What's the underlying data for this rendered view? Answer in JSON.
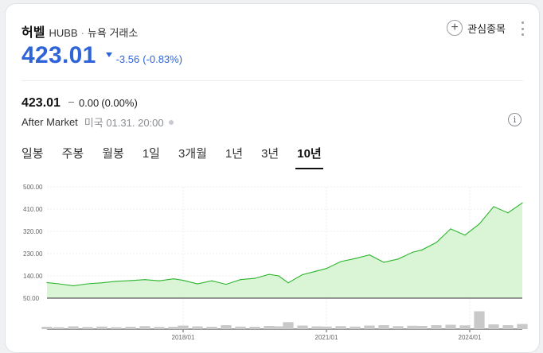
{
  "header": {
    "name": "허벨",
    "ticker": "HUBB",
    "separator": "·",
    "exchange": "뉴욕 거래소",
    "watch_label": "관심종목"
  },
  "quote": {
    "price": "423.01",
    "change": "-3.56",
    "change_pct": "(-0.83%)",
    "color_down": "#2e64d8"
  },
  "after_market": {
    "price": "423.01",
    "change": "0.00",
    "change_pct": "(0.00%)",
    "label": "After Market",
    "time": "미국 01.31. 20:00"
  },
  "tabs": [
    {
      "label": "일봉",
      "active": false
    },
    {
      "label": "주봉",
      "active": false
    },
    {
      "label": "월봉",
      "active": false
    },
    {
      "label": "1일",
      "active": false
    },
    {
      "label": "3개월",
      "active": false
    },
    {
      "label": "1년",
      "active": false
    },
    {
      "label": "3년",
      "active": false
    },
    {
      "label": "10년",
      "active": true
    }
  ],
  "chart_data": {
    "type": "area",
    "line_color": "#2fb52f",
    "fill_color": "#d9f5d6",
    "y_ticks": [
      "500.00",
      "410.00",
      "320.00",
      "230.00",
      "140.00",
      "50.00"
    ],
    "y_tick_values": [
      500,
      410,
      320,
      230,
      140,
      50
    ],
    "ylim": [
      50,
      500
    ],
    "x_ticks": [
      "2018/01",
      "2021/01",
      "2024/01"
    ],
    "x_tick_values": [
      2018.0,
      2021.0,
      2024.0
    ],
    "xlim": [
      2015.15,
      2025.1
    ],
    "x": [
      2015.15,
      2015.4,
      2015.7,
      2016.0,
      2016.3,
      2016.6,
      2016.9,
      2017.2,
      2017.5,
      2017.8,
      2018.0,
      2018.3,
      2018.6,
      2018.9,
      2019.2,
      2019.5,
      2019.8,
      2020.0,
      2020.2,
      2020.5,
      2020.8,
      2021.0,
      2021.3,
      2021.6,
      2021.9,
      2022.2,
      2022.5,
      2022.8,
      2023.0,
      2023.3,
      2023.6,
      2023.9,
      2024.2,
      2024.5,
      2024.8,
      2025.1
    ],
    "y": [
      113,
      108,
      100,
      108,
      112,
      118,
      121,
      125,
      120,
      128,
      122,
      108,
      120,
      106,
      125,
      130,
      146,
      140,
      112,
      145,
      160,
      170,
      198,
      210,
      225,
      195,
      208,
      235,
      245,
      275,
      330,
      305,
      350,
      420,
      395,
      435
    ],
    "volume": [
      0.12,
      0.1,
      0.14,
      0.11,
      0.13,
      0.1,
      0.12,
      0.15,
      0.11,
      0.12,
      0.18,
      0.14,
      0.12,
      0.2,
      0.13,
      0.12,
      0.16,
      0.14,
      0.35,
      0.18,
      0.14,
      0.13,
      0.15,
      0.13,
      0.18,
      0.2,
      0.15,
      0.17,
      0.16,
      0.2,
      0.22,
      0.19,
      0.9,
      0.24,
      0.2,
      0.26
    ]
  }
}
